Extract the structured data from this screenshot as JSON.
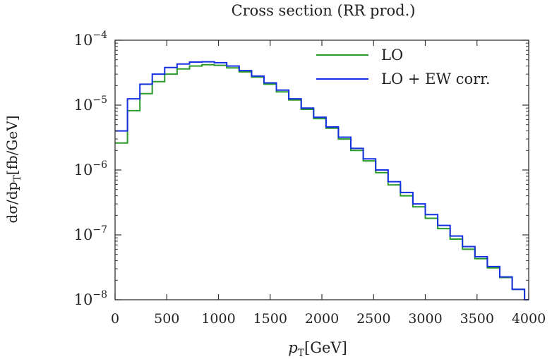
{
  "chart_data": {
    "type": "line",
    "title": "Cross section (RR prod.)",
    "xlabel": "p",
    "xlabel_sub": "T",
    "xlabel_unit": "[GeV]",
    "ylabel_parts": {
      "prefix": "dσ/dp",
      "sub": "T",
      "unit": "[fb/GeV]"
    },
    "xlim": [
      0,
      4000
    ],
    "ylim": [
      1e-08,
      0.0001
    ],
    "yscale": "log",
    "grid": false,
    "legend_position": "top-right",
    "x_ticks": [
      "0",
      "500",
      "1000",
      "1500",
      "2000",
      "2500",
      "3000",
      "3500",
      "4000"
    ],
    "y_ticks": [
      {
        "base": "10",
        "exp": "−4"
      },
      {
        "base": "10",
        "exp": "−5"
      },
      {
        "base": "10",
        "exp": "−6"
      },
      {
        "base": "10",
        "exp": "−7"
      },
      {
        "base": "10",
        "exp": "−8"
      }
    ],
    "bin_edges": [
      0,
      120,
      240,
      360,
      480,
      600,
      720,
      840,
      960,
      1080,
      1200,
      1320,
      1440,
      1560,
      1680,
      1800,
      1920,
      2040,
      2160,
      2280,
      2400,
      2520,
      2640,
      2760,
      2880,
      3000,
      3120,
      3240,
      3360,
      3480,
      3600,
      3720,
      3840,
      3960
    ],
    "series": [
      {
        "name": "LO",
        "color": "#2a9a2a",
        "values": [
          2.6e-06,
          8.2e-06,
          1.5e-05,
          2.3e-05,
          3e-05,
          3.6e-05,
          4e-05,
          4.2e-05,
          4.1e-05,
          3.75e-05,
          3.25e-05,
          2.7e-05,
          2.1e-05,
          1.6e-05,
          1.2e-05,
          8.6e-06,
          6.2e-06,
          4.4e-06,
          3e-06,
          2e-06,
          1.38e-06,
          9.1e-07,
          5.9e-07,
          4e-07,
          2.7e-07,
          1.8e-07,
          1.25e-07,
          8.6e-08,
          6e-08,
          4.3e-08,
          3.1e-08,
          2.2e-08,
          1.45e-08,
          1e-08
        ]
      },
      {
        "name": "LO + EW corr.",
        "color": "#1530e0",
        "values": [
          4e-06,
          1.25e-05,
          2.1e-05,
          3e-05,
          3.8e-05,
          4.3e-05,
          4.6e-05,
          4.65e-05,
          4.5e-05,
          4e-05,
          3.4e-05,
          2.8e-05,
          2.2e-05,
          1.7e-05,
          1.25e-05,
          9e-06,
          6.5e-06,
          4.6e-06,
          3.2e-06,
          2.15e-06,
          1.48e-06,
          1e-06,
          6.6e-07,
          4.5e-07,
          3e-07,
          2.05e-07,
          1.4e-07,
          9.6e-08,
          6.6e-08,
          4.6e-08,
          3.25e-08,
          2.25e-08,
          1.45e-08,
          1e-08
        ]
      }
    ]
  }
}
